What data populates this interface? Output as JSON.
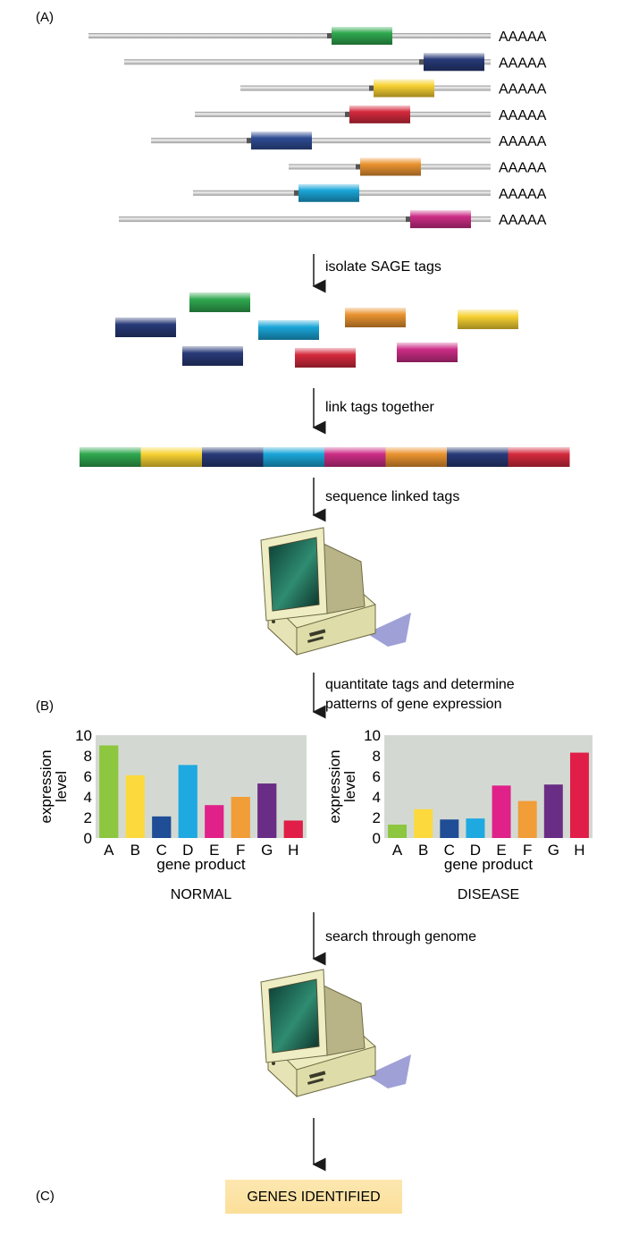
{
  "panels": {
    "a": "(A)",
    "b": "(B)",
    "c": "(C)"
  },
  "poly_a_label": "AAAAA",
  "steps": {
    "isolate": "isolate SAGE tags",
    "link": "link tags together",
    "sequence": "sequence linked tags",
    "quantitate_line1": "quantitate tags and determine",
    "quantitate_line2": "patterns of gene expression",
    "search": "search through genome"
  },
  "tag_colors": {
    "green": "#2fa84f",
    "yellow": "#f7d233",
    "navy": "#283a78",
    "cyan": "#1aa5d8",
    "magenta": "#cc2d86",
    "orange": "#ea9330",
    "red": "#d42a3d",
    "blue": "#2e4c93"
  },
  "transcripts": [
    {
      "tag": "green"
    },
    {
      "tag": "navy"
    },
    {
      "tag": "yellow"
    },
    {
      "tag": "red"
    },
    {
      "tag": "blue"
    },
    {
      "tag": "orange"
    },
    {
      "tag": "cyan"
    },
    {
      "tag": "magenta"
    }
  ],
  "concatemer_order": [
    "green",
    "yellow",
    "navy",
    "cyan",
    "magenta",
    "orange",
    "navy",
    "red"
  ],
  "chart_data": [
    {
      "type": "bar",
      "title": "NORMAL",
      "xlabel": "gene product",
      "ylabel": "expression level",
      "categories": [
        "A",
        "B",
        "C",
        "D",
        "E",
        "F",
        "G",
        "H"
      ],
      "values": [
        9.0,
        6.1,
        2.1,
        7.1,
        3.2,
        4.0,
        5.3,
        1.7
      ],
      "colors": [
        "#8dc63f",
        "#fcd93c",
        "#1f4d96",
        "#1ea9e1",
        "#e0218a",
        "#f19d38",
        "#6a2d85",
        "#e01e48"
      ],
      "ylim": [
        0,
        10
      ],
      "yticks": [
        0,
        2,
        4,
        6,
        8,
        10
      ],
      "grid": false
    },
    {
      "type": "bar",
      "title": "DISEASE",
      "xlabel": "gene product",
      "ylabel": "expression level",
      "categories": [
        "A",
        "B",
        "C",
        "D",
        "E",
        "F",
        "G",
        "H"
      ],
      "values": [
        1.3,
        2.8,
        1.8,
        1.9,
        5.1,
        3.6,
        5.2,
        8.3
      ],
      "colors": [
        "#8dc63f",
        "#fcd93c",
        "#1f4d96",
        "#1ea9e1",
        "#e0218a",
        "#f19d38",
        "#6a2d85",
        "#e01e48"
      ],
      "ylim": [
        0,
        10
      ],
      "yticks": [
        0,
        2,
        4,
        6,
        8,
        10
      ],
      "grid": false
    }
  ],
  "result_label": "GENES IDENTIFIED"
}
